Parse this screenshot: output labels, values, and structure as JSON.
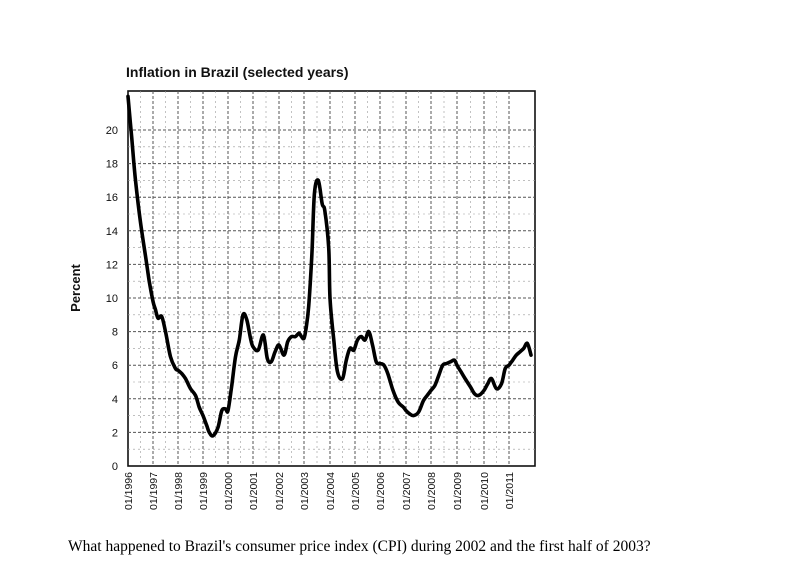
{
  "chart_data": {
    "type": "line",
    "title": "Inflation in Brazil (selected years)",
    "ylabel": "Percent",
    "xlabel": "",
    "ylim": [
      0,
      22
    ],
    "yticks": [
      0,
      2,
      4,
      6,
      8,
      10,
      12,
      14,
      16,
      18,
      20
    ],
    "xlim": [
      1996.0,
      2011.9
    ],
    "xticks": [
      {
        "x": 1996,
        "label": "01/1996"
      },
      {
        "x": 1997,
        "label": "01/1997"
      },
      {
        "x": 1998,
        "label": "01/1998"
      },
      {
        "x": 1999,
        "label": "01/1999"
      },
      {
        "x": 2000,
        "label": "01/2000"
      },
      {
        "x": 2001,
        "label": "01/2001"
      },
      {
        "x": 2002,
        "label": "01/2002"
      },
      {
        "x": 2003,
        "label": "01/2003"
      },
      {
        "x": 2004,
        "label": "01/2004"
      },
      {
        "x": 2005,
        "label": "01/2005"
      },
      {
        "x": 2006,
        "label": "01/2006"
      },
      {
        "x": 2007,
        "label": "01/2007"
      },
      {
        "x": 2008,
        "label": "01/2008"
      },
      {
        "x": 2009,
        "label": "01/2009"
      },
      {
        "x": 2010,
        "label": "01/2010"
      },
      {
        "x": 2011,
        "label": "01/2011"
      }
    ],
    "grid": true,
    "series": [
      {
        "x": [
          1996.0,
          1996.15,
          1996.3,
          1996.5,
          1996.7,
          1996.85,
          1997.0,
          1997.1,
          1997.2,
          1997.35,
          1997.5,
          1997.7,
          1997.9,
          1998.0,
          1998.15,
          1998.3,
          1998.5,
          1998.7,
          1998.85,
          1999.0,
          1999.15,
          1999.25,
          1999.4,
          1999.6,
          1999.75,
          1999.9,
          2000.0,
          2000.15,
          2000.3,
          2000.45,
          2000.6,
          2000.75,
          2000.9,
          2001.0,
          2001.2,
          2001.4,
          2001.55,
          2001.7,
          2001.85,
          2002.0,
          2002.2,
          2002.35,
          2002.5,
          2002.65,
          2002.8,
          2002.9,
          2003.0,
          2003.08,
          2003.18,
          2003.3,
          2003.4,
          2003.55,
          2003.7,
          2003.8,
          2003.95,
          2004.0,
          2004.15,
          2004.3,
          2004.5,
          2004.65,
          2004.8,
          2004.95,
          2005.1,
          2005.25,
          2005.4,
          2005.55,
          2005.7,
          2005.85,
          2006.0,
          2006.15,
          2006.3,
          2006.5,
          2006.7,
          2006.9,
          2007.0,
          2007.15,
          2007.3,
          2007.5,
          2007.7,
          2007.85,
          2008.0,
          2008.15,
          2008.3,
          2008.45,
          2008.6,
          2008.75,
          2008.9,
          2009.0,
          2009.15,
          2009.3,
          2009.5,
          2009.65,
          2009.8,
          2010.0,
          2010.15,
          2010.3,
          2010.5,
          2010.7,
          2010.85,
          2011.0,
          2011.15,
          2011.3,
          2011.45,
          2011.6,
          2011.75,
          2011.9
        ],
        "y": [
          22.0,
          19.5,
          17.0,
          14.5,
          12.5,
          11.0,
          9.8,
          9.3,
          8.8,
          8.9,
          8.0,
          6.5,
          5.8,
          5.7,
          5.5,
          5.2,
          4.6,
          4.2,
          3.5,
          3.0,
          2.4,
          2.0,
          1.8,
          2.3,
          3.3,
          3.4,
          3.3,
          4.8,
          6.5,
          7.5,
          9.0,
          8.7,
          7.6,
          7.1,
          6.9,
          7.8,
          6.4,
          6.2,
          6.8,
          7.2,
          6.6,
          7.4,
          7.7,
          7.7,
          7.9,
          7.7,
          7.6,
          8.2,
          9.5,
          12.5,
          16.2,
          17.0,
          15.6,
          15.2,
          13.0,
          10.0,
          7.5,
          5.6,
          5.2,
          6.3,
          7.0,
          6.9,
          7.5,
          7.7,
          7.5,
          8.0,
          7.2,
          6.2,
          6.1,
          6.0,
          5.5,
          4.5,
          3.8,
          3.5,
          3.3,
          3.1,
          3.0,
          3.2,
          3.9,
          4.2,
          4.5,
          4.8,
          5.4,
          6.0,
          6.1,
          6.2,
          6.3,
          6.0,
          5.6,
          5.2,
          4.7,
          4.3,
          4.2,
          4.5,
          4.9,
          5.2,
          4.6,
          4.9,
          5.8,
          6.0,
          6.3,
          6.6,
          6.8,
          7.0,
          7.3,
          6.6
        ]
      }
    ]
  },
  "question": "What happened to Brazil's consumer price index (CPI) during 2002 and the first half of 2003?"
}
